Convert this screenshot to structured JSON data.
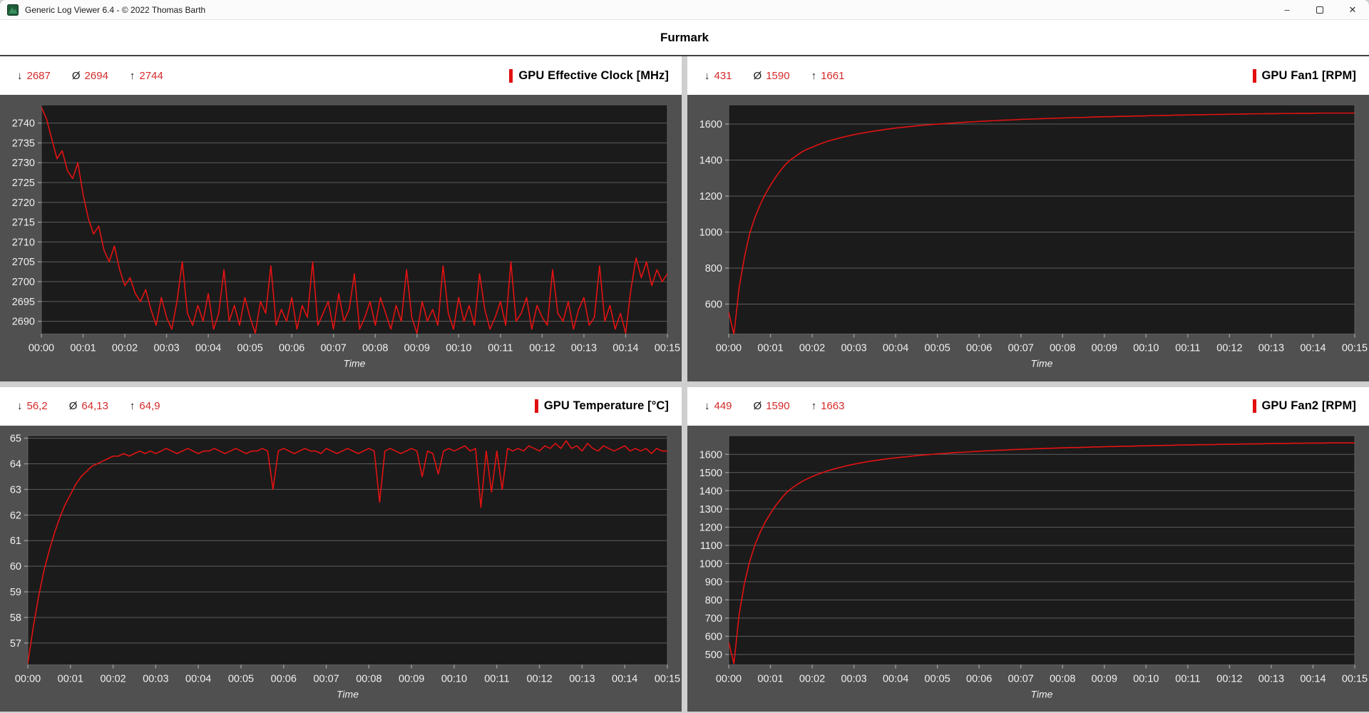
{
  "window": {
    "title": "Generic Log Viewer 6.4 - © 2022 Thomas Barth",
    "controls": {
      "minimize": "–",
      "close": "✕"
    }
  },
  "header": {
    "title": "Furmark"
  },
  "labels": {
    "min_symbol": "↓",
    "avg_symbol": "Ø",
    "max_symbol": "↑"
  },
  "colors": {
    "accent_red": "#e01010",
    "line_red": "#e31212",
    "stat_value": "#d42a2a",
    "panel_bg": "#505050",
    "plot_bg": "#1b1b1b",
    "grid_line": "#5e5e5e",
    "tick_mark": "#9a9a9a",
    "axis_text": "#f0f0f0",
    "divider": "#cfcfcf"
  },
  "chart_data": [
    {
      "id": "gpu-effective-clock",
      "type": "line",
      "title": "GPU Effective Clock [MHz]",
      "stats": {
        "min": "2687",
        "avg": "2694",
        "max": "2744"
      },
      "xlabel": "Time",
      "x_ticks": [
        "00:00",
        "00:01",
        "00:02",
        "00:03",
        "00:04",
        "00:05",
        "00:06",
        "00:07",
        "00:08",
        "00:09",
        "00:10",
        "00:11",
        "00:12",
        "00:13",
        "00:14",
        "00:15"
      ],
      "x_tick_seconds": [
        0,
        60,
        120,
        180,
        240,
        300,
        360,
        420,
        480,
        540,
        600,
        660,
        720,
        780,
        840,
        900
      ],
      "xlim_seconds": [
        0,
        900
      ],
      "y_ticks": [
        2740,
        2735,
        2730,
        2725,
        2720,
        2715,
        2710,
        2705,
        2700,
        2695,
        2690
      ],
      "ylim": [
        2686.8,
        2744.6
      ],
      "grid": "horizontal",
      "legend": "none",
      "dt_seconds": 7.5,
      "series": [
        {
          "name": "GPU Effective Clock [MHz]",
          "color": "#e31212",
          "values": [
            2744,
            2741,
            2736,
            2731,
            2733,
            2728,
            2726,
            2730,
            2722,
            2716,
            2712,
            2714,
            2708,
            2705,
            2709,
            2703,
            2699,
            2701,
            2697,
            2695,
            2698,
            2693,
            2689,
            2696,
            2691,
            2688,
            2695,
            2705,
            2692,
            2689,
            2694,
            2690,
            2697,
            2688,
            2692,
            2703,
            2690,
            2694,
            2689,
            2696,
            2691,
            2687,
            2695,
            2692,
            2704,
            2689,
            2693,
            2690,
            2696,
            2688,
            2694,
            2691,
            2705,
            2689,
            2692,
            2695,
            2688,
            2697,
            2690,
            2693,
            2702,
            2688,
            2691,
            2695,
            2689,
            2696,
            2692,
            2688,
            2694,
            2690,
            2703,
            2691,
            2687,
            2695,
            2690,
            2693,
            2689,
            2704,
            2692,
            2688,
            2696,
            2690,
            2694,
            2689,
            2702,
            2693,
            2688,
            2691,
            2695,
            2689,
            2705,
            2690,
            2692,
            2696,
            2688,
            2694,
            2691,
            2689,
            2703,
            2692,
            2690,
            2695,
            2688,
            2693,
            2696,
            2689,
            2691,
            2704,
            2690,
            2694,
            2688,
            2692,
            2687,
            2698,
            2706,
            2701,
            2705,
            2699,
            2703,
            2700,
            2702
          ]
        }
      ]
    },
    {
      "id": "gpu-fan1",
      "type": "line",
      "title": "GPU Fan1 [RPM]",
      "stats": {
        "min": "431",
        "avg": "1590",
        "max": "1661"
      },
      "xlabel": "Time",
      "x_ticks": [
        "00:00",
        "00:01",
        "00:02",
        "00:03",
        "00:04",
        "00:05",
        "00:06",
        "00:07",
        "00:08",
        "00:09",
        "00:10",
        "00:11",
        "00:12",
        "00:13",
        "00:14",
        "00:15"
      ],
      "x_tick_seconds": [
        0,
        60,
        120,
        180,
        240,
        300,
        360,
        420,
        480,
        540,
        600,
        660,
        720,
        780,
        840,
        900
      ],
      "xlim_seconds": [
        0,
        900
      ],
      "y_ticks": [
        1600,
        1400,
        1200,
        1000,
        800,
        600
      ],
      "ylim": [
        434,
        1707
      ],
      "grid": "horizontal",
      "legend": "none",
      "dt_seconds": 7.5,
      "series": [
        {
          "name": "GPU Fan1 [RPM]",
          "color": "#e31212",
          "values": [
            555,
            431,
            690,
            860,
            990,
            1080,
            1150,
            1210,
            1260,
            1305,
            1345,
            1380,
            1405,
            1425,
            1445,
            1460,
            1472,
            1484,
            1495,
            1505,
            1513,
            1521,
            1528,
            1535,
            1541,
            1547,
            1552,
            1557,
            1562,
            1566,
            1570,
            1574,
            1578,
            1581,
            1584,
            1587,
            1590,
            1593,
            1595,
            1598,
            1600,
            1602,
            1604,
            1606,
            1608,
            1610,
            1612,
            1613,
            1615,
            1616,
            1618,
            1619,
            1621,
            1622,
            1623,
            1624,
            1626,
            1627,
            1628,
            1629,
            1630,
            1631,
            1632,
            1633,
            1634,
            1635,
            1636,
            1637,
            1637,
            1638,
            1639,
            1640,
            1641,
            1641,
            1642,
            1643,
            1643,
            1644,
            1645,
            1645,
            1646,
            1647,
            1647,
            1648,
            1648,
            1649,
            1650,
            1650,
            1651,
            1651,
            1652,
            1652,
            1653,
            1653,
            1654,
            1654,
            1655,
            1655,
            1656,
            1656,
            1657,
            1657,
            1657,
            1658,
            1658,
            1658,
            1659,
            1659,
            1659,
            1660,
            1660,
            1660,
            1660,
            1661,
            1661,
            1661,
            1661,
            1661,
            1661,
            1661,
            1661
          ]
        }
      ]
    },
    {
      "id": "gpu-temperature",
      "type": "line",
      "title": "GPU Temperature [°C]",
      "stats": {
        "min": "56,2",
        "avg": "64,13",
        "max": "64,9"
      },
      "xlabel": "Time",
      "x_ticks": [
        "00:00",
        "00:01",
        "00:02",
        "00:03",
        "00:04",
        "00:05",
        "00:06",
        "00:07",
        "00:08",
        "00:09",
        "00:10",
        "00:11",
        "00:12",
        "00:13",
        "00:14",
        "00:15"
      ],
      "x_tick_seconds": [
        0,
        60,
        120,
        180,
        240,
        300,
        360,
        420,
        480,
        540,
        600,
        660,
        720,
        780,
        840,
        900
      ],
      "xlim_seconds": [
        0,
        900
      ],
      "y_ticks": [
        65,
        64,
        63,
        62,
        61,
        60,
        59,
        58,
        57
      ],
      "ylim": [
        56.15,
        65.1
      ],
      "grid": "horizontal",
      "legend": "none",
      "dt_seconds": 7.5,
      "series": [
        {
          "name": "GPU Temperature [°C]",
          "color": "#e31212",
          "values": [
            56.2,
            57.6,
            58.8,
            59.8,
            60.6,
            61.3,
            61.9,
            62.4,
            62.8,
            63.2,
            63.5,
            63.7,
            63.9,
            64.0,
            64.1,
            64.2,
            64.3,
            64.3,
            64.4,
            64.3,
            64.4,
            64.5,
            64.4,
            64.5,
            64.4,
            64.5,
            64.6,
            64.5,
            64.4,
            64.5,
            64.6,
            64.5,
            64.4,
            64.5,
            64.5,
            64.6,
            64.5,
            64.4,
            64.5,
            64.6,
            64.5,
            64.4,
            64.5,
            64.5,
            64.6,
            64.5,
            63.0,
            64.5,
            64.6,
            64.5,
            64.4,
            64.5,
            64.6,
            64.5,
            64.5,
            64.4,
            64.6,
            64.5,
            64.4,
            64.5,
            64.6,
            64.5,
            64.4,
            64.5,
            64.6,
            64.5,
            62.5,
            64.5,
            64.6,
            64.5,
            64.4,
            64.5,
            64.6,
            64.5,
            63.5,
            64.5,
            64.4,
            63.6,
            64.5,
            64.6,
            64.5,
            64.6,
            64.7,
            64.5,
            64.6,
            62.3,
            64.5,
            62.9,
            64.5,
            63.0,
            64.6,
            64.5,
            64.6,
            64.5,
            64.7,
            64.6,
            64.5,
            64.7,
            64.6,
            64.8,
            64.6,
            64.9,
            64.6,
            64.7,
            64.5,
            64.8,
            64.6,
            64.5,
            64.7,
            64.6,
            64.5,
            64.6,
            64.7,
            64.5,
            64.6,
            64.5,
            64.6,
            64.4,
            64.6,
            64.5,
            64.5
          ]
        }
      ]
    },
    {
      "id": "gpu-fan2",
      "type": "line",
      "title": "GPU Fan2 [RPM]",
      "stats": {
        "min": "449",
        "avg": "1590",
        "max": "1663"
      },
      "xlabel": "Time",
      "x_ticks": [
        "00:00",
        "00:01",
        "00:02",
        "00:03",
        "00:04",
        "00:05",
        "00:06",
        "00:07",
        "00:08",
        "00:09",
        "00:10",
        "00:11",
        "00:12",
        "00:13",
        "00:14",
        "00:15"
      ],
      "x_tick_seconds": [
        0,
        60,
        120,
        180,
        240,
        300,
        360,
        420,
        480,
        540,
        600,
        660,
        720,
        780,
        840,
        900
      ],
      "xlim_seconds": [
        0,
        900
      ],
      "y_ticks": [
        1600,
        1500,
        1400,
        1300,
        1200,
        1100,
        1000,
        900,
        800,
        700,
        600,
        500
      ],
      "ylim": [
        443,
        1703
      ],
      "grid": "horizontal",
      "legend": "none",
      "dt_seconds": 7.5,
      "series": [
        {
          "name": "GPU Fan2 [RPM]",
          "color": "#e31212",
          "values": [
            565,
            449,
            720,
            890,
            1010,
            1100,
            1170,
            1228,
            1275,
            1318,
            1355,
            1388,
            1412,
            1432,
            1450,
            1465,
            1478,
            1490,
            1500,
            1510,
            1518,
            1526,
            1533,
            1540,
            1546,
            1552,
            1557,
            1562,
            1566,
            1570,
            1574,
            1578,
            1581,
            1584,
            1587,
            1590,
            1593,
            1596,
            1598,
            1600,
            1603,
            1605,
            1607,
            1609,
            1611,
            1612,
            1614,
            1616,
            1617,
            1619,
            1620,
            1622,
            1623,
            1624,
            1626,
            1627,
            1628,
            1629,
            1630,
            1631,
            1632,
            1633,
            1634,
            1635,
            1636,
            1637,
            1638,
            1638,
            1639,
            1640,
            1641,
            1641,
            1642,
            1643,
            1643,
            1644,
            1645,
            1645,
            1646,
            1647,
            1647,
            1648,
            1649,
            1649,
            1650,
            1650,
            1651,
            1651,
            1652,
            1652,
            1653,
            1653,
            1654,
            1654,
            1655,
            1655,
            1656,
            1656,
            1657,
            1657,
            1658,
            1658,
            1658,
            1659,
            1659,
            1660,
            1660,
            1660,
            1661,
            1661,
            1661,
            1662,
            1662,
            1662,
            1662,
            1663,
            1663,
            1663,
            1663,
            1663,
            1663
          ]
        }
      ]
    }
  ]
}
